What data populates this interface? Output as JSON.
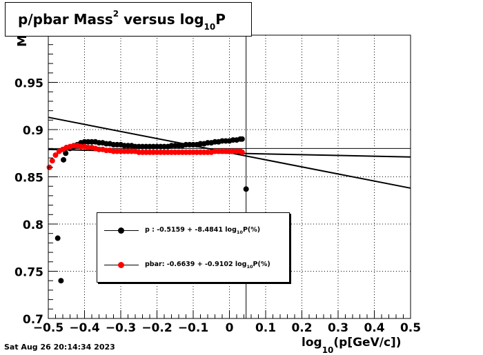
{
  "chart_data": {
    "type": "scatter",
    "title": {
      "pre": "p/pbar Mass",
      "sup": "2",
      "mid": " versus log",
      "sub": "10",
      "post": "P"
    },
    "xlabel": {
      "pre": "log",
      "sub": "10",
      "post": "(p[GeV/c])"
    },
    "ylabel": "M",
    "xlim": [
      -0.5,
      0.5
    ],
    "ylim": [
      0.7,
      1.0
    ],
    "x_ticks": [
      -0.5,
      -0.4,
      -0.3,
      -0.2,
      -0.1,
      0,
      0.1,
      0.2,
      0.3,
      0.4,
      0.5
    ],
    "x_tick_labels": [
      "−0.5",
      "−0.4",
      "−0.3",
      "−0.2",
      "−0.1",
      "0",
      "0.1",
      "0.2",
      "0.3",
      "0.4",
      "0.5"
    ],
    "y_ticks": [
      0.7,
      0.75,
      0.8,
      0.85,
      0.9,
      0.95
    ],
    "y_tick_labels": [
      "0.7",
      "0.75",
      "0.8",
      "0.85",
      "0.9",
      "0.95"
    ],
    "grid": true,
    "reference_lines": {
      "horizontal_y": 0.88,
      "vertical_x": 0.046
    },
    "series": [
      {
        "name": "p",
        "color": "#000000",
        "fit": {
          "x": [
            -0.5,
            0.5
          ],
          "y": [
            0.913,
            0.838
          ]
        },
        "points": {
          "x": [
            -0.474,
            -0.465,
            -0.458,
            -0.452,
            -0.44,
            -0.43,
            -0.42,
            -0.41,
            -0.4,
            -0.39,
            -0.38,
            -0.37,
            -0.36,
            -0.35,
            -0.34,
            -0.33,
            -0.32,
            -0.31,
            -0.3,
            -0.29,
            -0.28,
            -0.27,
            -0.26,
            -0.25,
            -0.24,
            -0.23,
            -0.22,
            -0.21,
            -0.2,
            -0.19,
            -0.18,
            -0.17,
            -0.16,
            -0.15,
            -0.14,
            -0.13,
            -0.12,
            -0.11,
            -0.1,
            -0.09,
            -0.08,
            -0.07,
            -0.06,
            -0.05,
            -0.04,
            -0.03,
            -0.02,
            -0.01,
            0,
            0.01,
            0.02,
            0.03,
            0.035,
            0.046
          ],
          "y": [
            0.785,
            0.74,
            0.868,
            0.875,
            0.88,
            0.882,
            0.884,
            0.886,
            0.887,
            0.887,
            0.887,
            0.887,
            0.886,
            0.886,
            0.885,
            0.885,
            0.884,
            0.884,
            0.884,
            0.883,
            0.883,
            0.883,
            0.882,
            0.882,
            0.882,
            0.882,
            0.882,
            0.882,
            0.882,
            0.882,
            0.882,
            0.882,
            0.883,
            0.883,
            0.883,
            0.883,
            0.884,
            0.884,
            0.884,
            0.884,
            0.885,
            0.885,
            0.886,
            0.886,
            0.887,
            0.887,
            0.888,
            0.888,
            0.888,
            0.889,
            0.889,
            0.89,
            0.89,
            0.837
          ]
        }
      },
      {
        "name": "pbar",
        "color": "#ff0000",
        "fit": {
          "x": [
            -0.5,
            0.5
          ],
          "y": [
            0.879,
            0.871
          ]
        },
        "points": {
          "x": [
            -0.497,
            -0.489,
            -0.48,
            -0.47,
            -0.46,
            -0.45,
            -0.44,
            -0.43,
            -0.42,
            -0.41,
            -0.4,
            -0.39,
            -0.38,
            -0.37,
            -0.36,
            -0.35,
            -0.34,
            -0.33,
            -0.32,
            -0.31,
            -0.3,
            -0.29,
            -0.28,
            -0.27,
            -0.26,
            -0.25,
            -0.24,
            -0.23,
            -0.22,
            -0.21,
            -0.2,
            -0.19,
            -0.18,
            -0.17,
            -0.16,
            -0.15,
            -0.14,
            -0.13,
            -0.12,
            -0.11,
            -0.1,
            -0.09,
            -0.08,
            -0.07,
            -0.06,
            -0.05,
            -0.04,
            -0.03,
            -0.02,
            -0.01,
            0,
            0.01,
            0.02,
            0.03,
            0.035
          ],
          "y": [
            0.86,
            0.867,
            0.873,
            0.877,
            0.879,
            0.881,
            0.882,
            0.883,
            0.883,
            0.882,
            0.882,
            0.881,
            0.881,
            0.88,
            0.879,
            0.879,
            0.878,
            0.878,
            0.877,
            0.877,
            0.877,
            0.877,
            0.877,
            0.877,
            0.877,
            0.876,
            0.876,
            0.876,
            0.876,
            0.876,
            0.876,
            0.876,
            0.876,
            0.876,
            0.876,
            0.876,
            0.876,
            0.876,
            0.876,
            0.876,
            0.876,
            0.876,
            0.876,
            0.876,
            0.876,
            0.876,
            0.877,
            0.877,
            0.877,
            0.877,
            0.877,
            0.877,
            0.877,
            0.877,
            0.876
          ]
        }
      }
    ],
    "legend": {
      "placement": "bottom-center",
      "entries": [
        {
          "name": "p",
          "pre": "p  : -0.5159 + -8.4841 log",
          "sub": "10",
          "post": "P(%)"
        },
        {
          "name": "pbar",
          "pre": "pbar: -0.6639 + -0.9102 log",
          "sub": "10",
          "post": "P(%)"
        }
      ]
    }
  },
  "footer": {
    "timestamp": "Sat Aug 26 20:14:34 2023"
  }
}
